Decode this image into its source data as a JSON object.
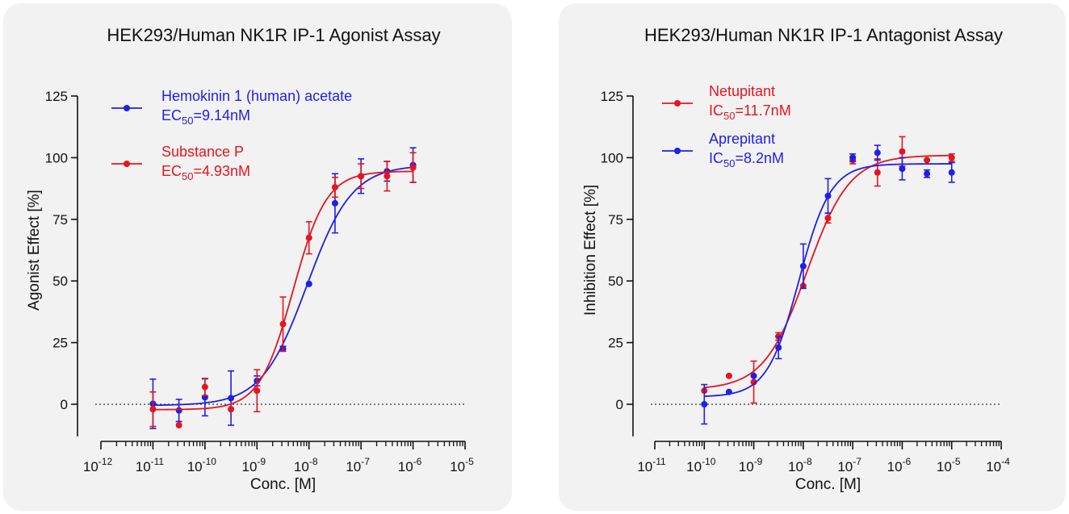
{
  "chart_data": [
    {
      "type": "line",
      "title": "HEK293/Human NK1R IP-1 Agonist Assay",
      "xlabel": "Conc. [M]",
      "ylabel": "Agonist Effect [%]",
      "xscale": "log",
      "xlim_exp": [
        -12,
        -5
      ],
      "x_ticks": [
        {
          "base": "10",
          "exp": "-12"
        },
        {
          "base": "10",
          "exp": "-11"
        },
        {
          "base": "10",
          "exp": "-10"
        },
        {
          "base": "10",
          "exp": "-9"
        },
        {
          "base": "10",
          "exp": "-8"
        },
        {
          "base": "10",
          "exp": "-7"
        },
        {
          "base": "10",
          "exp": "-6"
        },
        {
          "base": "10",
          "exp": "-5"
        }
      ],
      "ylim": [
        -13,
        125
      ],
      "y_ticks": [
        "0",
        "25",
        "50",
        "75",
        "100",
        "125"
      ],
      "baseline": 0,
      "legend_position": "top-left",
      "series": [
        {
          "name": "Hemokinin 1 (human) acetate",
          "ec_prefix": "EC",
          "ec_sub": "50",
          "ec_value": "=9.14nM",
          "color": "#1f1fe6",
          "fit": {
            "bottom": -0.5,
            "top": 97,
            "log_ec50": -8.039,
            "hill": 1.0
          },
          "points": [
            {
              "logx": -11.0,
              "y": 0.2,
              "err": 10
            },
            {
              "logx": -10.5,
              "y": -2.5,
              "err": 4.5
            },
            {
              "logx": -10.0,
              "y": 2.8,
              "err": 7.5
            },
            {
              "logx": -9.5,
              "y": 2.5,
              "err": 11
            },
            {
              "logx": -9.0,
              "y": 9.5,
              "err": 2
            },
            {
              "logx": -8.5,
              "y": 22.5,
              "err": 1
            },
            {
              "logx": -8.0,
              "y": 48.8,
              "err": 0
            },
            {
              "logx": -7.5,
              "y": 81.5,
              "err": 12
            },
            {
              "logx": -7.0,
              "y": 92.5,
              "err": 7
            },
            {
              "logx": -6.5,
              "y": 94.5,
              "err": 4
            },
            {
              "logx": -6.0,
              "y": 97,
              "err": 7
            }
          ]
        },
        {
          "name": "Substance P",
          "ec_prefix": "EC",
          "ec_sub": "50",
          "ec_value": "=4.93nM",
          "color": "#e6141e",
          "fit": {
            "bottom": -2.2,
            "top": 94.5,
            "log_ec50": -8.307,
            "hill": 1.35
          },
          "points": [
            {
              "logx": -11.0,
              "y": -2,
              "err": 7
            },
            {
              "logx": -10.5,
              "y": -8.5,
              "err": 0
            },
            {
              "logx": -10.0,
              "y": 7,
              "err": 3.5
            },
            {
              "logx": -9.5,
              "y": -2,
              "err": 0
            },
            {
              "logx": -9.0,
              "y": 5.5,
              "err": 8.5
            },
            {
              "logx": -8.5,
              "y": 32.5,
              "err": 11
            },
            {
              "logx": -8.0,
              "y": 67.5,
              "err": 6.5
            },
            {
              "logx": -7.5,
              "y": 88,
              "err": 4
            },
            {
              "logx": -7.0,
              "y": 92.5,
              "err": 5
            },
            {
              "logx": -6.5,
              "y": 92.5,
              "err": 6
            },
            {
              "logx": -6.0,
              "y": 96,
              "err": 6
            }
          ]
        }
      ]
    },
    {
      "type": "line",
      "title": "HEK293/Human NK1R IP-1 Antagonist Assay",
      "xlabel": "Conc. [M]",
      "ylabel": "Inhibition Effect [%]",
      "xscale": "log",
      "xlim_exp": [
        -11,
        -4
      ],
      "x_ticks": [
        {
          "base": "10",
          "exp": "-11"
        },
        {
          "base": "10",
          "exp": "-10"
        },
        {
          "base": "10",
          "exp": "-9"
        },
        {
          "base": "10",
          "exp": "-8"
        },
        {
          "base": "10",
          "exp": "-7"
        },
        {
          "base": "10",
          "exp": "-6"
        },
        {
          "base": "10",
          "exp": "-5"
        },
        {
          "base": "10",
          "exp": "-4"
        }
      ],
      "ylim": [
        -13,
        125
      ],
      "y_ticks": [
        "0",
        "25",
        "50",
        "75",
        "100",
        "125"
      ],
      "baseline": 0,
      "legend_position": "top-left",
      "series": [
        {
          "name": "Netupitant",
          "ec_prefix": "IC",
          "ec_sub": "50",
          "ec_value": "=11.7nM",
          "color": "#e6141e",
          "fit": {
            "bottom": 6,
            "top": 101,
            "log_ec50": -7.93,
            "hill": 1.0
          },
          "points": [
            {
              "logx": -10.0,
              "y": 5.5,
              "err": 0
            },
            {
              "logx": -9.5,
              "y": 11.5,
              "err": 0
            },
            {
              "logx": -9.0,
              "y": 9,
              "err": 8.5
            },
            {
              "logx": -8.5,
              "y": 27.5,
              "err": 1.5
            },
            {
              "logx": -8.0,
              "y": 48,
              "err": 0
            },
            {
              "logx": -7.5,
              "y": 75.5,
              "err": 2
            },
            {
              "logx": -7.0,
              "y": 99,
              "err": 1.5
            },
            {
              "logx": -6.5,
              "y": 94,
              "err": 5.5
            },
            {
              "logx": -6.0,
              "y": 102.5,
              "err": 6
            },
            {
              "logx": -5.5,
              "y": 99,
              "err": 0
            },
            {
              "logx": -5.0,
              "y": 100,
              "err": 1.5
            }
          ]
        },
        {
          "name": "Aprepitant",
          "ec_prefix": "IC",
          "ec_sub": "50",
          "ec_value": "=8.2nM",
          "color": "#1f1fe6",
          "fit": {
            "bottom": 3,
            "top": 97.5,
            "log_ec50": -8.086,
            "hill": 1.35
          },
          "points": [
            {
              "logx": -10.0,
              "y": 0,
              "err": 8
            },
            {
              "logx": -9.5,
              "y": 5,
              "err": 0
            },
            {
              "logx": -9.0,
              "y": 11.5,
              "err": 0
            },
            {
              "logx": -8.5,
              "y": 23,
              "err": 4.5
            },
            {
              "logx": -8.0,
              "y": 56,
              "err": 9
            },
            {
              "logx": -7.5,
              "y": 84.5,
              "err": 7
            },
            {
              "logx": -7.0,
              "y": 100,
              "err": 1.5
            },
            {
              "logx": -6.5,
              "y": 102,
              "err": 3
            },
            {
              "logx": -6.0,
              "y": 95.5,
              "err": 4.5
            },
            {
              "logx": -5.5,
              "y": 93.5,
              "err": 1.5
            },
            {
              "logx": -5.0,
              "y": 94,
              "err": 4
            }
          ]
        }
      ]
    }
  ]
}
